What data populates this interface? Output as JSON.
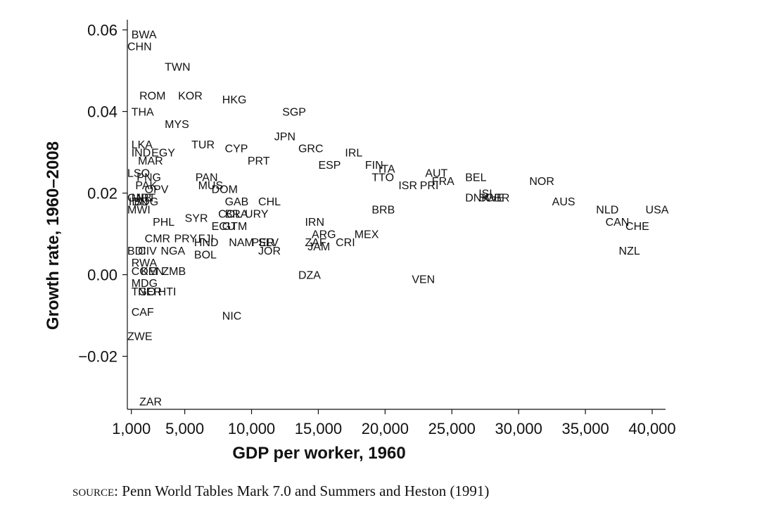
{
  "source": {
    "label": "SOURCE:",
    "text": "Penn World Tables Mark 7.0 and Summers and Heston (1991)"
  },
  "chart_data": {
    "type": "scatter",
    "xlabel": "GDP per worker, 1960",
    "ylabel": "Growth rate, 1960–2008",
    "xlim": [
      700,
      41000
    ],
    "ylim": [
      -0.033,
      0.0625
    ],
    "xticks": [
      1000,
      5000,
      10000,
      15000,
      20000,
      25000,
      30000,
      35000,
      40000
    ],
    "xtick_labels": [
      "1,000",
      "5,000",
      "10,000",
      "15,000",
      "20,000",
      "25,000",
      "30,000",
      "35,000",
      "40,000"
    ],
    "yticks": [
      -0.02,
      0.0,
      0.02,
      0.04,
      0.06
    ],
    "ytick_labels": [
      "−0.02",
      "0.00",
      "0.02",
      "0.04",
      "0.06"
    ],
    "points": [
      {
        "label": "BWA",
        "x": 1000,
        "y": 0.059
      },
      {
        "label": "CHN",
        "x": 700,
        "y": 0.056
      },
      {
        "label": "TWN",
        "x": 3500,
        "y": 0.051
      },
      {
        "label": "ROM",
        "x": 1600,
        "y": 0.044
      },
      {
        "label": "KOR",
        "x": 4500,
        "y": 0.044
      },
      {
        "label": "HKG",
        "x": 7800,
        "y": 0.043
      },
      {
        "label": "SGP",
        "x": 12300,
        "y": 0.04
      },
      {
        "label": "THA",
        "x": 1000,
        "y": 0.04
      },
      {
        "label": "MYS",
        "x": 3500,
        "y": 0.037
      },
      {
        "label": "JPN",
        "x": 11700,
        "y": 0.034
      },
      {
        "label": "GRC",
        "x": 13500,
        "y": 0.031
      },
      {
        "label": "LKA",
        "x": 1000,
        "y": 0.032
      },
      {
        "label": "EGY",
        "x": 2500,
        "y": 0.03
      },
      {
        "label": "TUR",
        "x": 5500,
        "y": 0.032
      },
      {
        "label": "CYP",
        "x": 8000,
        "y": 0.031
      },
      {
        "label": "IND",
        "x": 1000,
        "y": 0.03
      },
      {
        "label": "MAR",
        "x": 1500,
        "y": 0.028
      },
      {
        "label": "PRT",
        "x": 9700,
        "y": 0.028
      },
      {
        "label": "IRL",
        "x": 17000,
        "y": 0.03
      },
      {
        "label": "ESP",
        "x": 15000,
        "y": 0.027
      },
      {
        "label": "FIN",
        "x": 18500,
        "y": 0.027
      },
      {
        "label": "ITA",
        "x": 19500,
        "y": 0.026
      },
      {
        "label": "TTO",
        "x": 19000,
        "y": 0.024
      },
      {
        "label": "AUT",
        "x": 23000,
        "y": 0.025
      },
      {
        "label": "FRA",
        "x": 23500,
        "y": 0.023
      },
      {
        "label": "ISR",
        "x": 21000,
        "y": 0.022
      },
      {
        "label": "PRI",
        "x": 22600,
        "y": 0.022
      },
      {
        "label": "BEL",
        "x": 26000,
        "y": 0.024
      },
      {
        "label": "NOR",
        "x": 30800,
        "y": 0.023
      },
      {
        "label": "LSO",
        "x": 700,
        "y": 0.025
      },
      {
        "label": "PNG",
        "x": 1400,
        "y": 0.024
      },
      {
        "label": "PAK",
        "x": 1300,
        "y": 0.022
      },
      {
        "label": "OPV",
        "x": 2000,
        "y": 0.021
      },
      {
        "label": "PAN",
        "x": 5800,
        "y": 0.024
      },
      {
        "label": "MUS",
        "x": 6000,
        "y": 0.022
      },
      {
        "label": "DOM",
        "x": 7000,
        "y": 0.021
      },
      {
        "label": "ISL",
        "x": 27000,
        "y": 0.02
      },
      {
        "label": "DNK",
        "x": 26000,
        "y": 0.019
      },
      {
        "label": "SWE",
        "x": 27000,
        "y": 0.019
      },
      {
        "label": "GBR",
        "x": 27500,
        "y": 0.019
      },
      {
        "label": "AUS",
        "x": 32500,
        "y": 0.018
      },
      {
        "label": "GAB",
        "x": 8000,
        "y": 0.018
      },
      {
        "label": "CHL",
        "x": 10500,
        "y": 0.018
      },
      {
        "label": "GNB",
        "x": 700,
        "y": 0.019
      },
      {
        "label": "MRT",
        "x": 1000,
        "y": 0.019
      },
      {
        "label": "IDN",
        "x": 800,
        "y": 0.018
      },
      {
        "label": "BDG",
        "x": 1200,
        "y": 0.018
      },
      {
        "label": "NLD",
        "x": 35800,
        "y": 0.016
      },
      {
        "label": "USA",
        "x": 39500,
        "y": 0.016
      },
      {
        "label": "BRB",
        "x": 19000,
        "y": 0.016
      },
      {
        "label": "COL",
        "x": 7500,
        "y": 0.015
      },
      {
        "label": "BRA",
        "x": 8000,
        "y": 0.015
      },
      {
        "label": "URY",
        "x": 9500,
        "y": 0.015
      },
      {
        "label": "MWI",
        "x": 700,
        "y": 0.016
      },
      {
        "label": "SYR",
        "x": 5000,
        "y": 0.014
      },
      {
        "label": "PHL",
        "x": 2600,
        "y": 0.013
      },
      {
        "label": "CAN",
        "x": 36500,
        "y": 0.013
      },
      {
        "label": "CHE",
        "x": 38000,
        "y": 0.012
      },
      {
        "label": "ECU",
        "x": 7000,
        "y": 0.012
      },
      {
        "label": "GTM",
        "x": 7800,
        "y": 0.012
      },
      {
        "label": "IRN",
        "x": 14000,
        "y": 0.013
      },
      {
        "label": "ARG",
        "x": 14500,
        "y": 0.01
      },
      {
        "label": "MEX",
        "x": 17700,
        "y": 0.01
      },
      {
        "label": "CMR",
        "x": 2000,
        "y": 0.009
      },
      {
        "label": "PRY",
        "x": 4200,
        "y": 0.009
      },
      {
        "label": "FJI",
        "x": 6000,
        "y": 0.009
      },
      {
        "label": "NAM",
        "x": 8300,
        "y": 0.008
      },
      {
        "label": "PER",
        "x": 10000,
        "y": 0.008
      },
      {
        "label": "SLV",
        "x": 10500,
        "y": 0.008
      },
      {
        "label": "HND",
        "x": 5700,
        "y": 0.008
      },
      {
        "label": "CRI",
        "x": 16300,
        "y": 0.008
      },
      {
        "label": "ZAF",
        "x": 14000,
        "y": 0.008
      },
      {
        "label": "JAM",
        "x": 14200,
        "y": 0.007
      },
      {
        "label": "JOR",
        "x": 10500,
        "y": 0.006
      },
      {
        "label": "NZL",
        "x": 37500,
        "y": 0.006
      },
      {
        "label": "BDI",
        "x": 700,
        "y": 0.006
      },
      {
        "label": "CIV",
        "x": 1500,
        "y": 0.006
      },
      {
        "label": "NGA",
        "x": 3200,
        "y": 0.006
      },
      {
        "label": "BOL",
        "x": 5700,
        "y": 0.005
      },
      {
        "label": "RWA",
        "x": 1000,
        "y": 0.003
      },
      {
        "label": "COM",
        "x": 1000,
        "y": 0.001
      },
      {
        "label": "KEN",
        "x": 1700,
        "y": 0.001
      },
      {
        "label": "ZMB",
        "x": 3300,
        "y": 0.001
      },
      {
        "label": "DZA",
        "x": 13500,
        "y": 0.0
      },
      {
        "label": "VEN",
        "x": 22000,
        "y": -0.001
      },
      {
        "label": "MDG",
        "x": 1000,
        "y": -0.002
      },
      {
        "label": "TGO",
        "x": 1000,
        "y": -0.004
      },
      {
        "label": "NER",
        "x": 1500,
        "y": -0.004
      },
      {
        "label": "HTI",
        "x": 3000,
        "y": -0.004
      },
      {
        "label": "CAF",
        "x": 1000,
        "y": -0.009
      },
      {
        "label": "NIC",
        "x": 7800,
        "y": -0.01
      },
      {
        "label": "ZWE",
        "x": 700,
        "y": -0.015
      },
      {
        "label": "ZAR",
        "x": 1600,
        "y": -0.031
      }
    ]
  }
}
